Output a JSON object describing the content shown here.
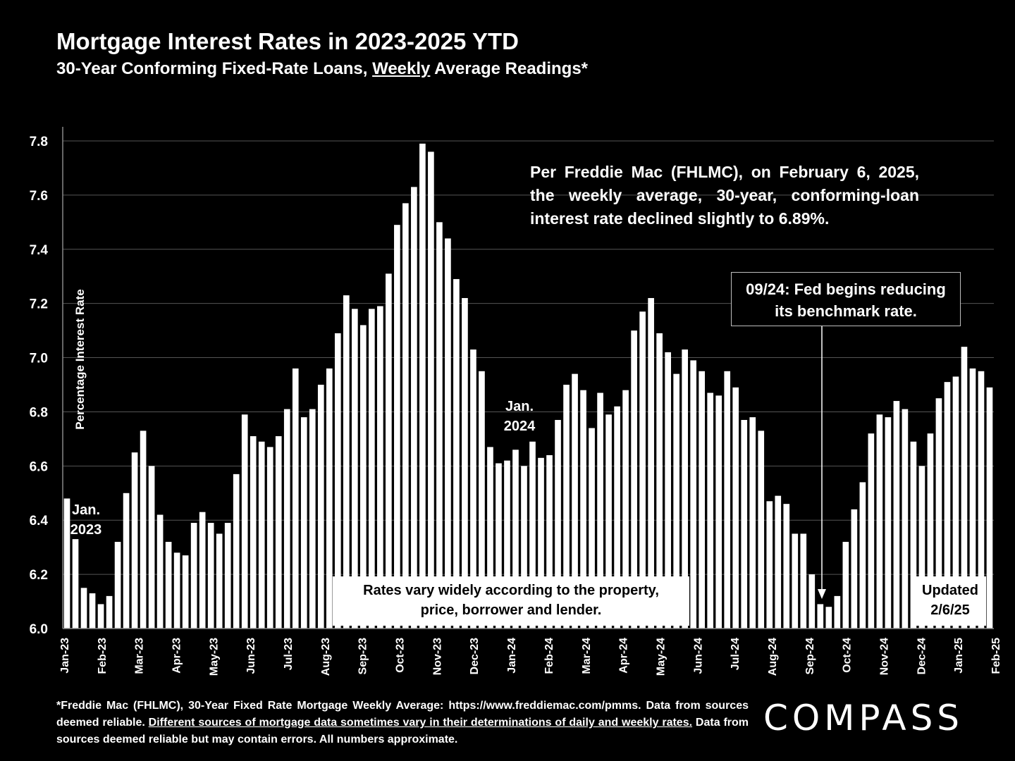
{
  "title": "Mortgage Interest Rates in 2023-2025 YTD",
  "subtitle": {
    "before": "30-Year Conforming Fixed-Rate Loans, ",
    "underlined": "Weekly",
    "after": " Average Readings*"
  },
  "annotations": {
    "main_note": "Per Freddie Mac (FHLMC), on February 6, 2025, the weekly average, 30-year, conforming-loan interest rate declined slightly to 6.89%.",
    "fed_note_line1": "09/24: Fed begins reducing",
    "fed_note_line2": "its benchmark rate.",
    "rates_note_line1": "Rates vary widely according to the property,",
    "rates_note_line2": "price, borrower and lender.",
    "updated_line1": "Updated",
    "updated_line2": "2/6/25",
    "jan2023_line1": "Jan.",
    "jan2023_line2": "2023",
    "jan2024_line1": "Jan.",
    "jan2024_line2": "2024"
  },
  "footer": {
    "part1": "*Freddie Mac (FHLMC), 30-Year Fixed Rate Mortgage Weekly Average:  https://www.freddiemac.com/pmms. Data from sources deemed reliable. ",
    "underlined": "Different sources of mortgage data sometimes vary in their determinations of daily and weekly rates.",
    "part2": " Data from sources deemed reliable but may contain errors. All numbers approximate."
  },
  "logo": "COMPASS",
  "colors": {
    "background": "#000000",
    "bars": "#ffffff",
    "gridlines": "#555555",
    "text": "#ffffff"
  },
  "chart_data": {
    "type": "bar",
    "ylabel": "Percentage Interest  Rate",
    "xlabel": "",
    "ylim": [
      6.0,
      7.8
    ],
    "yticks": [
      "6.0",
      "6.2",
      "6.4",
      "6.6",
      "6.8",
      "7.0",
      "7.2",
      "7.4",
      "7.6",
      "7.8"
    ],
    "grid": true,
    "month_labels": [
      "Jan-23",
      "Feb-23",
      "Mar-23",
      "Apr-23",
      "May-23",
      "Jun-23",
      "Jul-23",
      "Aug-23",
      "Sep-23",
      "Oct-23",
      "Nov-23",
      "Dec-23",
      "Jan-24",
      "Feb-24",
      "Mar-24",
      "Apr-24",
      "May-24",
      "Jun-24",
      "Jul-24",
      "Aug-24",
      "Sep-24",
      "Oct-24",
      "Nov-24",
      "Dec-24",
      "Jan-25",
      "Feb-25"
    ],
    "values": [
      6.48,
      6.33,
      6.15,
      6.13,
      6.09,
      6.12,
      6.32,
      6.5,
      6.65,
      6.73,
      6.6,
      6.42,
      6.32,
      6.28,
      6.27,
      6.39,
      6.43,
      6.39,
      6.35,
      6.39,
      6.57,
      6.79,
      6.71,
      6.69,
      6.67,
      6.71,
      6.81,
      6.96,
      6.78,
      6.81,
      6.9,
      6.96,
      7.09,
      7.23,
      7.18,
      7.12,
      7.18,
      7.19,
      7.31,
      7.49,
      7.57,
      7.63,
      7.79,
      7.76,
      7.5,
      7.44,
      7.29,
      7.22,
      7.03,
      6.95,
      6.67,
      6.61,
      6.62,
      6.66,
      6.6,
      6.69,
      6.63,
      6.64,
      6.77,
      6.9,
      6.94,
      6.88,
      6.74,
      6.87,
      6.79,
      6.82,
      6.88,
      7.1,
      7.17,
      7.22,
      7.09,
      7.02,
      6.94,
      7.03,
      6.99,
      6.95,
      6.87,
      6.86,
      6.95,
      6.89,
      6.77,
      6.78,
      6.73,
      6.47,
      6.49,
      6.46,
      6.35,
      6.35,
      6.2,
      6.09,
      6.08,
      6.12,
      6.32,
      6.44,
      6.54,
      6.72,
      6.79,
      6.78,
      6.84,
      6.81,
      6.69,
      6.6,
      6.72,
      6.85,
      6.91,
      6.93,
      7.04,
      6.96,
      6.95,
      6.89
    ]
  }
}
